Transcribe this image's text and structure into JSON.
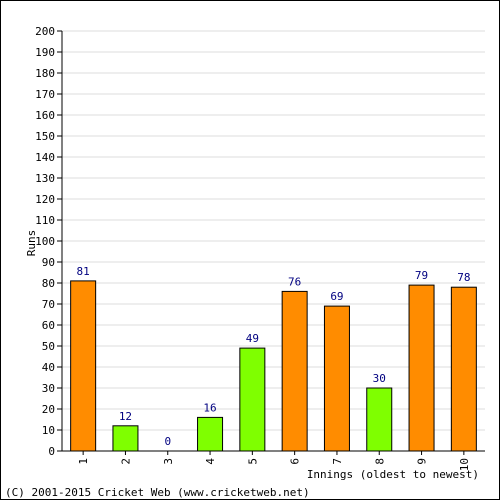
{
  "chart_data": {
    "type": "bar",
    "categories": [
      "1",
      "2",
      "3",
      "4",
      "5",
      "6",
      "7",
      "8",
      "9",
      "10"
    ],
    "values": [
      81,
      12,
      0,
      16,
      49,
      76,
      69,
      30,
      79,
      78
    ],
    "bar_colors": [
      "#FF8C00",
      "#7FFF00",
      "#7FFF00",
      "#7FFF00",
      "#7FFF00",
      "#FF8C00",
      "#FF8C00",
      "#7FFF00",
      "#FF8C00",
      "#FF8C00"
    ],
    "ylabel": "Runs",
    "xlabel": "Innings (oldest to newest)",
    "ylim": [
      0,
      200
    ],
    "ytick_step": 10,
    "grid": true
  },
  "footer": {
    "copyright": "(C) 2001-2015 Cricket Web (www.cricketweb.net)"
  },
  "colors": {
    "grid": "#dddddd",
    "axis": "#000000",
    "label": "#000080"
  }
}
